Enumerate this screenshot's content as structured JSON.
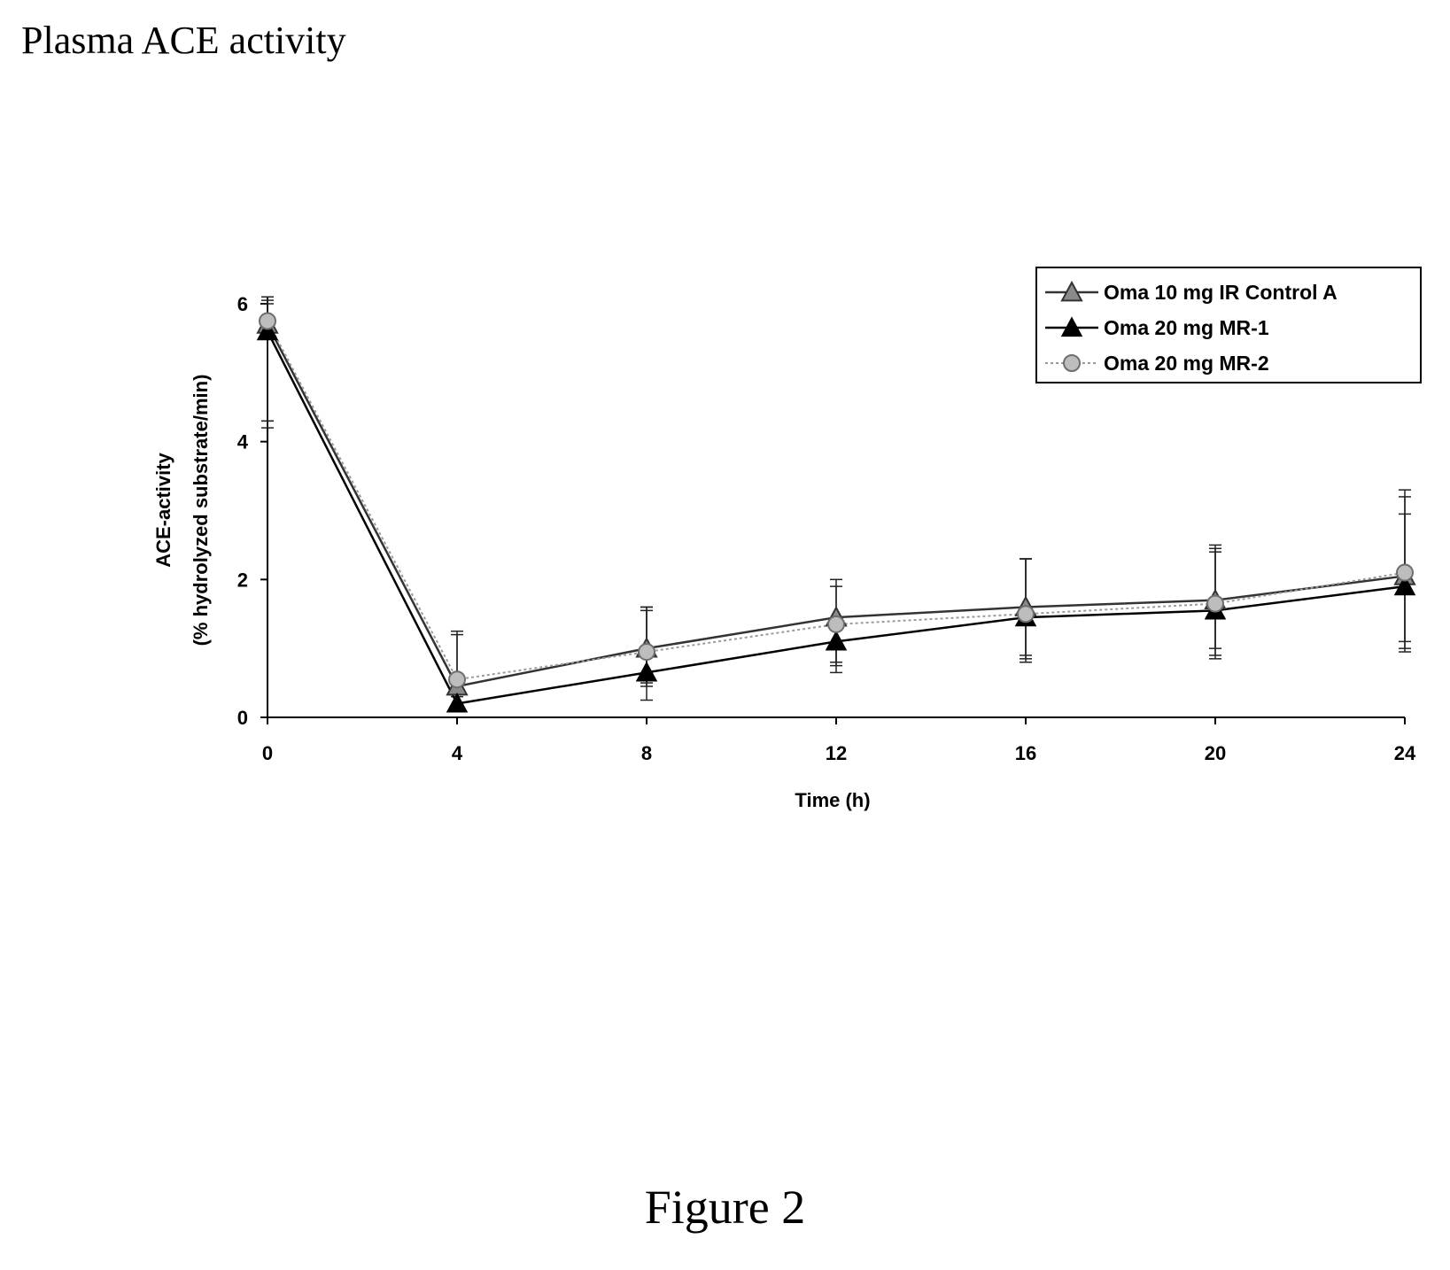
{
  "page_title": "Plasma ACE activity",
  "figure_caption": "Figure 2",
  "chart_data": {
    "type": "line",
    "title": "",
    "xlabel": "Time (h)",
    "ylabel": "ACE-activity",
    "ylabel_sub": "(% hydrolyzed substrate/min)",
    "x": [
      0,
      4,
      8,
      12,
      16,
      20,
      24
    ],
    "x_ticks": [
      "0",
      "4",
      "8",
      "12",
      "16",
      "20",
      "24"
    ],
    "y_ticks": [
      "0",
      "2",
      "4",
      "6"
    ],
    "xlim": [
      0,
      24
    ],
    "ylim": [
      0,
      6
    ],
    "grid": false,
    "legend_position": "top-right",
    "series": [
      {
        "name": "Oma 10 mg IR Control A",
        "marker": "triangle-hollow",
        "line_style": "solid",
        "color": "#333333",
        "values": [
          5.7,
          0.45,
          1.0,
          1.45,
          1.6,
          1.7,
          2.05
        ],
        "error_upper": [
          6.05,
          1.25,
          1.6,
          2.0,
          2.3,
          2.45,
          3.3
        ],
        "error_lower": [
          4.3,
          0.3,
          0.45,
          0.8,
          0.8,
          0.9,
          0.95
        ]
      },
      {
        "name": "Oma 20 mg MR-1",
        "marker": "triangle-filled",
        "line_style": "solid",
        "color": "#000000",
        "values": [
          5.6,
          0.2,
          0.65,
          1.1,
          1.45,
          1.55,
          1.9
        ],
        "error_upper": [
          6.0,
          0.45,
          1.55,
          1.4,
          2.3,
          2.4,
          2.95
        ],
        "error_lower": [
          4.2,
          0.1,
          0.25,
          0.65,
          0.9,
          1.0,
          1.1
        ]
      },
      {
        "name": "Oma 20 mg MR-2",
        "marker": "circle-gray",
        "line_style": "dotted",
        "color": "#9a9a9a",
        "values": [
          5.75,
          0.55,
          0.95,
          1.35,
          1.5,
          1.65,
          2.1
        ],
        "error_upper": [
          6.1,
          1.2,
          1.6,
          1.9,
          2.3,
          2.5,
          3.2
        ],
        "error_lower": [
          4.3,
          0.35,
          0.5,
          0.75,
          0.85,
          0.85,
          1.0
        ]
      }
    ]
  }
}
